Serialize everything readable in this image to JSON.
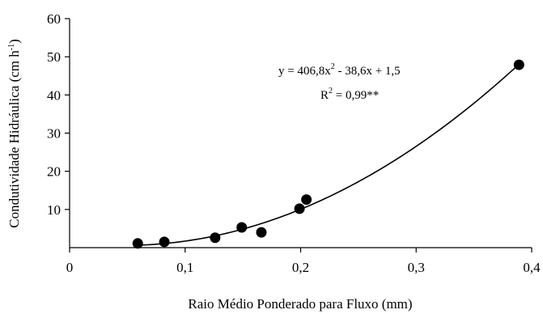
{
  "chart_data": {
    "type": "scatter",
    "xlabel": "Raio Médio Ponderado para Fluxo (mm)",
    "ylabel_main": "Condutividade Hidráulica (cm h",
    "ylabel_sup": "-1",
    "ylabel_close": ")",
    "xlim": [
      0,
      0.4
    ],
    "ylim": [
      0,
      60
    ],
    "x_ticks": [
      {
        "value": 0,
        "label": "0"
      },
      {
        "value": 0.1,
        "label": "0,1"
      },
      {
        "value": 0.2,
        "label": "0,2"
      },
      {
        "value": 0.3,
        "label": "0,3"
      },
      {
        "value": 0.4,
        "label": "0,4"
      }
    ],
    "y_ticks": [
      {
        "value": 10,
        "label": "10"
      },
      {
        "value": 20,
        "label": "20"
      },
      {
        "value": 30,
        "label": "30"
      },
      {
        "value": 40,
        "label": "40"
      },
      {
        "value": 50,
        "label": "50"
      },
      {
        "value": 60,
        "label": "60"
      }
    ],
    "points": [
      {
        "x": 0.059,
        "y": 1.1
      },
      {
        "x": 0.082,
        "y": 1.5
      },
      {
        "x": 0.126,
        "y": 2.6
      },
      {
        "x": 0.149,
        "y": 5.3
      },
      {
        "x": 0.166,
        "y": 4.0
      },
      {
        "x": 0.199,
        "y": 10.2
      },
      {
        "x": 0.205,
        "y": 12.6
      },
      {
        "x": 0.389,
        "y": 47.9
      }
    ],
    "fit": {
      "type": "quadratic",
      "coefficients": [
        406.8,
        -38.6,
        1.5
      ],
      "x_range": [
        0.059,
        0.389
      ]
    },
    "equation": {
      "line1_pre": "y = 406,8x",
      "line1_sup": "2",
      "line1_post": " - 38,6x + 1,5",
      "line2_pre": "R",
      "line2_sup": "2",
      "line2_post": " = 0,99**"
    },
    "grid": false,
    "legend": "none"
  }
}
